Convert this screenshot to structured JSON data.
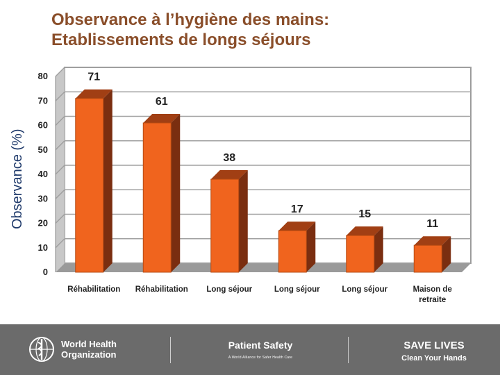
{
  "title_line1": "Observance à l’hygiène des mains:",
  "title_line2": "Etablissements de longs séjours",
  "chart_data": {
    "type": "bar",
    "title": "Observance à l’hygiène des mains: Etablissements de longs séjours",
    "ylabel": "Observance (%)",
    "xlabel": "",
    "ylim": [
      0,
      80
    ],
    "yticks": [
      "0",
      "10",
      "20",
      "30",
      "40",
      "50",
      "60",
      "70",
      "80"
    ],
    "categories": [
      [
        "Réhabilitation"
      ],
      [
        "Réhabilitation"
      ],
      [
        "Long séjour"
      ],
      [
        "Long séjour"
      ],
      [
        "Long séjour"
      ],
      [
        "Maison de",
        "retraite"
      ]
    ],
    "values": [
      71,
      61,
      38,
      17,
      15,
      11
    ],
    "bar_color": "#f0641e",
    "grid": true
  },
  "footer": {
    "who_line1": "World Health",
    "who_line2": "Organization",
    "ps_title": "Patient Safety",
    "ps_sub": "A World Alliance for Safer Health Care",
    "save_title": "SAVE LIVES",
    "save_sub": "Clean Your Hands"
  }
}
